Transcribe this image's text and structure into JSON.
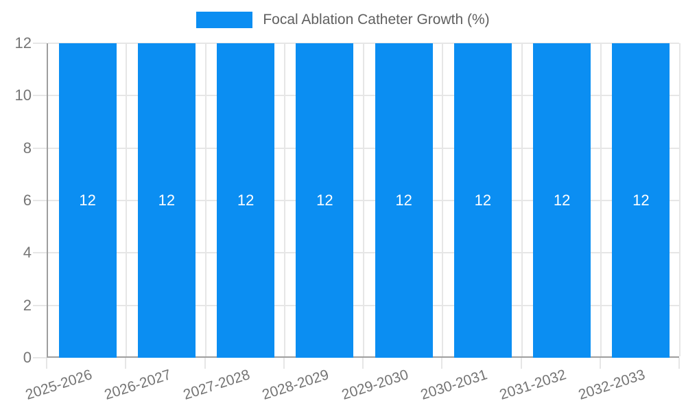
{
  "legend": {
    "label": "Focal Ablation Catheter Growth (%)"
  },
  "colors": {
    "bar": "#0b8ef2",
    "axis": "#9e9e9e",
    "grid": "#e6e6e6",
    "tick_text": "#757575",
    "legend_text": "#5f5f5f",
    "bar_label": "#ffffff",
    "background": "#ffffff"
  },
  "chart_data": {
    "type": "bar",
    "title": "Focal Ablation Catheter Growth (%)",
    "categories": [
      "2025-2026",
      "2026-2027",
      "2027-2028",
      "2028-2029",
      "2029-2030",
      "2030-2031",
      "2031-2032",
      "2032-2033"
    ],
    "values": [
      12,
      12,
      12,
      12,
      12,
      12,
      12,
      12
    ],
    "bar_labels": [
      "12",
      "12",
      "12",
      "12",
      "12",
      "12",
      "12",
      "12"
    ],
    "xlabel": "",
    "ylabel": "",
    "ylim": [
      0,
      12
    ],
    "yticks": [
      0,
      2,
      4,
      6,
      8,
      10,
      12
    ],
    "grid": true,
    "legend_position": "top",
    "x_label_rotation_deg": -18
  }
}
